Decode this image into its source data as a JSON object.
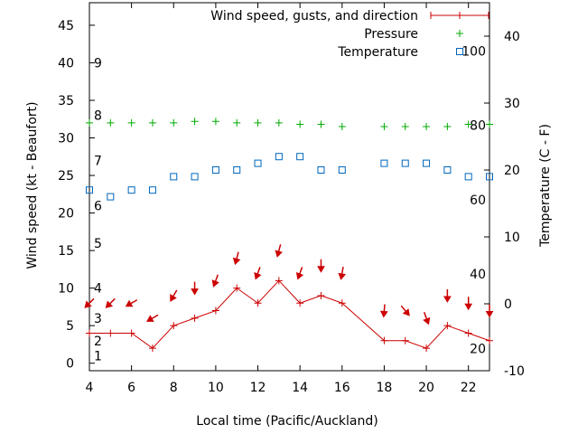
{
  "chart_data": {
    "type": "line",
    "xlabel": "Local time (Pacific/Auckland)",
    "ylabel_left": "Wind speed (kt - Beaufort)",
    "ylabel_right": "Temperature (C - F)",
    "x_ticks": [
      "4",
      "6",
      "8",
      "10",
      "12",
      "14",
      "16",
      "18",
      "20",
      "22"
    ],
    "y_left_ticks": [
      "0",
      "5",
      "10",
      "15",
      "20",
      "25",
      "30",
      "35",
      "40",
      "45"
    ],
    "y_right_ticks": [
      "-10",
      "0",
      "10",
      "20",
      "30",
      "40"
    ],
    "beaufort_labels": [
      "1",
      "2",
      "3",
      "4",
      "5",
      "6",
      "7",
      "8",
      "9"
    ],
    "fahrenheit_labels": [
      "20",
      "40",
      "60",
      "80",
      "100"
    ],
    "xlim": [
      4,
      23
    ],
    "ylim_left": [
      -1,
      48
    ],
    "ylim_right": [
      -10,
      45
    ],
    "grid": false,
    "legend_position": "top-right",
    "series": [
      {
        "name": "Wind speed, gusts, and direction",
        "color": "#cc0000",
        "axis": "left",
        "x": [
          4,
          5,
          6,
          7,
          8,
          9,
          10,
          11,
          12,
          13,
          14,
          15,
          16,
          18,
          19,
          20,
          21,
          22,
          23
        ],
        "values": [
          4,
          4,
          4,
          2,
          5,
          6,
          7,
          10,
          8,
          11,
          8,
          9,
          8,
          3,
          3,
          2,
          5,
          4,
          3
        ],
        "direction_deg": [
          45,
          45,
          60,
          60,
          30,
          0,
          20,
          15,
          20,
          15,
          20,
          0,
          10,
          5,
          320,
          340,
          0,
          0,
          0
        ]
      },
      {
        "name": "Pressure",
        "color": "#00aa00",
        "axis": "left",
        "x": [
          4,
          5,
          6,
          7,
          8,
          9,
          10,
          11,
          12,
          13,
          14,
          15,
          16,
          18,
          19,
          20,
          21,
          22,
          23
        ],
        "values": [
          32.0,
          32.0,
          32.0,
          32.0,
          32.0,
          32.2,
          32.2,
          32.0,
          32.0,
          32.0,
          31.8,
          31.8,
          31.5,
          31.5,
          31.5,
          31.5,
          31.5,
          31.8,
          31.8
        ]
      },
      {
        "name": "Temperature",
        "color": "#0066bb",
        "axis": "right",
        "x": [
          4,
          5,
          6,
          7,
          8,
          9,
          10,
          11,
          12,
          13,
          14,
          15,
          16,
          18,
          19,
          20,
          21,
          22,
          23
        ],
        "values": [
          17,
          16,
          17,
          17,
          19,
          19,
          20,
          20,
          21,
          22,
          22,
          20,
          20,
          21,
          21,
          21,
          20,
          19,
          19
        ]
      }
    ]
  }
}
